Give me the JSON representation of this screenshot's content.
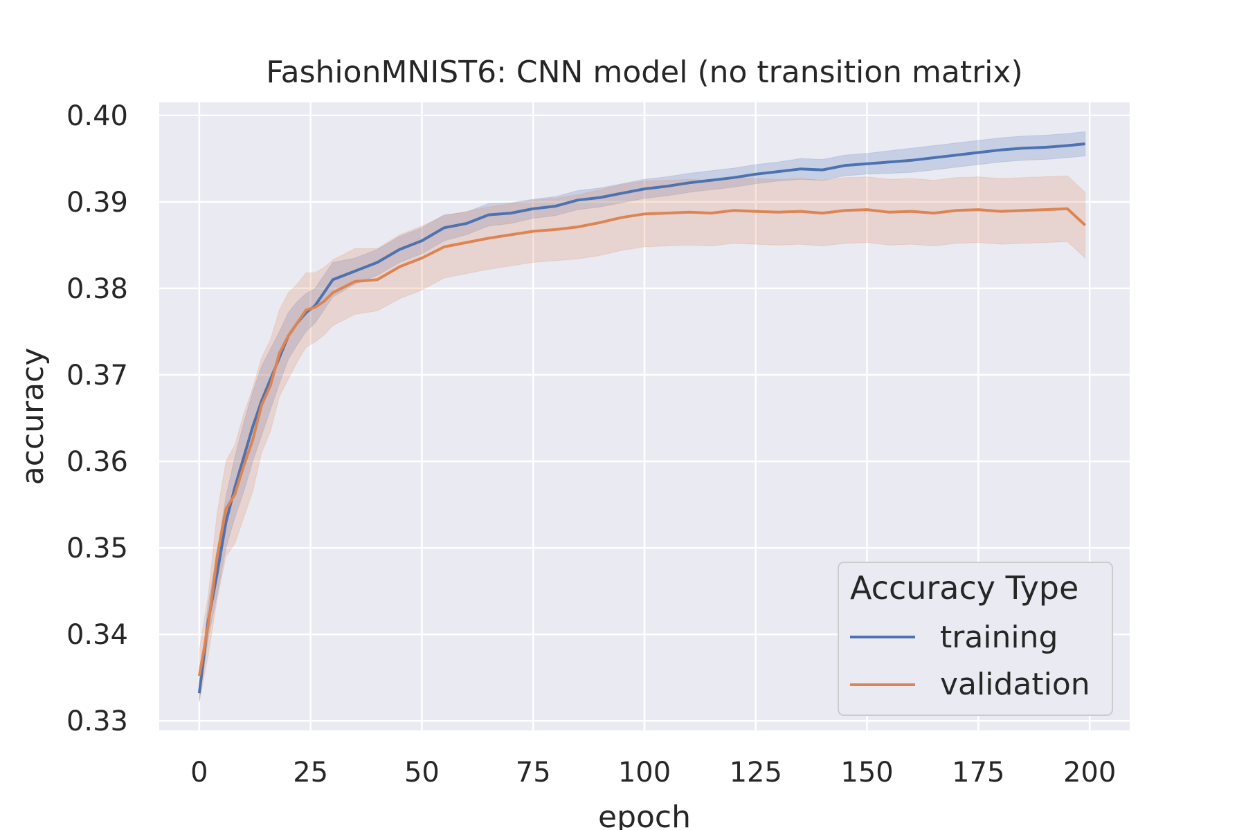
{
  "chart_data": {
    "type": "line",
    "title": "FashionMNIST6: CNN model (no transition matrix)",
    "xlabel": "epoch",
    "ylabel": "accuracy",
    "xlim": [
      -9,
      209
    ],
    "ylim": [
      0.3289,
      0.4015
    ],
    "xticks": [
      0,
      25,
      50,
      75,
      100,
      125,
      150,
      175,
      200
    ],
    "yticks": [
      0.33,
      0.34,
      0.35,
      0.36,
      0.37,
      0.38,
      0.39,
      0.4
    ],
    "xtick_labels": [
      "0",
      "25",
      "50",
      "75",
      "100",
      "125",
      "150",
      "175",
      "200"
    ],
    "ytick_labels": [
      "0.33",
      "0.34",
      "0.35",
      "0.36",
      "0.37",
      "0.38",
      "0.39",
      "0.40"
    ],
    "grid": true,
    "background": "#eaeaf2",
    "legend": {
      "title": "Accuracy Type",
      "position": "lower-right"
    },
    "series": [
      {
        "name": "training",
        "color": "#4c72b0",
        "x": [
          0,
          2,
          4,
          6,
          8,
          10,
          12,
          14,
          16,
          18,
          20,
          22,
          24,
          26,
          28,
          30,
          35,
          40,
          45,
          50,
          55,
          60,
          65,
          70,
          75,
          80,
          85,
          90,
          95,
          100,
          105,
          110,
          115,
          120,
          125,
          130,
          135,
          140,
          145,
          150,
          155,
          160,
          165,
          170,
          175,
          180,
          185,
          190,
          195,
          199
        ],
        "values": [
          0.3332,
          0.3415,
          0.347,
          0.353,
          0.357,
          0.3605,
          0.364,
          0.367,
          0.3695,
          0.372,
          0.3745,
          0.376,
          0.3772,
          0.378,
          0.3795,
          0.381,
          0.382,
          0.383,
          0.3845,
          0.3855,
          0.387,
          0.3875,
          0.3885,
          0.3887,
          0.3892,
          0.3895,
          0.3902,
          0.3905,
          0.391,
          0.3915,
          0.3918,
          0.3922,
          0.3925,
          0.3928,
          0.3932,
          0.3935,
          0.3938,
          0.3937,
          0.3942,
          0.3944,
          0.3946,
          0.3948,
          0.3951,
          0.3954,
          0.3957,
          0.396,
          0.3962,
          0.3963,
          0.3965,
          0.3967
        ],
        "lower": [
          0.3322,
          0.3395,
          0.3445,
          0.35,
          0.3535,
          0.3565,
          0.36,
          0.363,
          0.366,
          0.369,
          0.3718,
          0.3735,
          0.375,
          0.376,
          0.3775,
          0.379,
          0.3805,
          0.3815,
          0.383,
          0.384,
          0.3855,
          0.3862,
          0.3872,
          0.3875,
          0.3881,
          0.3884,
          0.3891,
          0.3894,
          0.3899,
          0.3904,
          0.3907,
          0.3911,
          0.3914,
          0.3917,
          0.3921,
          0.3924,
          0.3926,
          0.3925,
          0.393,
          0.3932,
          0.3933,
          0.3934,
          0.3937,
          0.394,
          0.3943,
          0.3946,
          0.3948,
          0.3949,
          0.3951,
          0.3953
        ],
        "upper": [
          0.3342,
          0.3435,
          0.3495,
          0.356,
          0.3605,
          0.3645,
          0.368,
          0.371,
          0.373,
          0.375,
          0.3772,
          0.3785,
          0.3794,
          0.38,
          0.3815,
          0.383,
          0.3835,
          0.3845,
          0.386,
          0.387,
          0.3885,
          0.3888,
          0.3898,
          0.3899,
          0.3903,
          0.3906,
          0.3913,
          0.3916,
          0.3921,
          0.3926,
          0.3929,
          0.3933,
          0.3936,
          0.3939,
          0.3943,
          0.3946,
          0.395,
          0.3949,
          0.3954,
          0.3956,
          0.3959,
          0.3962,
          0.3965,
          0.3968,
          0.3971,
          0.3974,
          0.3976,
          0.3977,
          0.3979,
          0.3981
        ]
      },
      {
        "name": "validation",
        "color": "#dd8452",
        "x": [
          0,
          2,
          4,
          6,
          8,
          10,
          12,
          14,
          16,
          18,
          20,
          22,
          24,
          26,
          28,
          30,
          35,
          40,
          45,
          50,
          55,
          60,
          65,
          70,
          75,
          80,
          85,
          90,
          95,
          100,
          105,
          110,
          115,
          120,
          125,
          130,
          135,
          140,
          145,
          150,
          155,
          160,
          165,
          170,
          175,
          180,
          185,
          190,
          195,
          199
        ],
        "values": [
          0.3352,
          0.341,
          0.349,
          0.3545,
          0.3562,
          0.3595,
          0.3625,
          0.3665,
          0.3688,
          0.3725,
          0.3745,
          0.376,
          0.3775,
          0.3778,
          0.3785,
          0.3795,
          0.3808,
          0.381,
          0.3825,
          0.3835,
          0.3848,
          0.3853,
          0.3858,
          0.3862,
          0.3866,
          0.3868,
          0.3871,
          0.3876,
          0.3882,
          0.3886,
          0.3887,
          0.3888,
          0.3887,
          0.389,
          0.3889,
          0.3888,
          0.3889,
          0.3887,
          0.389,
          0.3891,
          0.3888,
          0.3889,
          0.3887,
          0.389,
          0.3891,
          0.3889,
          0.389,
          0.3891,
          0.3892,
          0.3873
        ],
        "lower": [
          0.3322,
          0.3375,
          0.344,
          0.349,
          0.3505,
          0.3535,
          0.3565,
          0.361,
          0.3635,
          0.3675,
          0.3695,
          0.3715,
          0.3732,
          0.3738,
          0.3746,
          0.3757,
          0.377,
          0.3774,
          0.3788,
          0.3798,
          0.3812,
          0.3817,
          0.3822,
          0.3826,
          0.383,
          0.3832,
          0.3834,
          0.3838,
          0.3844,
          0.3848,
          0.3849,
          0.385,
          0.3849,
          0.3852,
          0.3851,
          0.385,
          0.3851,
          0.3849,
          0.3852,
          0.3853,
          0.385,
          0.3851,
          0.3849,
          0.3852,
          0.3853,
          0.3851,
          0.3852,
          0.3853,
          0.3854,
          0.3835
        ],
        "upper": [
          0.3382,
          0.3445,
          0.354,
          0.36,
          0.3619,
          0.3655,
          0.3685,
          0.372,
          0.3741,
          0.3775,
          0.3795,
          0.3805,
          0.3818,
          0.3818,
          0.3824,
          0.3833,
          0.3846,
          0.3846,
          0.3862,
          0.3872,
          0.3884,
          0.3889,
          0.3894,
          0.3898,
          0.3902,
          0.3904,
          0.3908,
          0.3914,
          0.392,
          0.3924,
          0.3925,
          0.3926,
          0.3925,
          0.3928,
          0.3927,
          0.3926,
          0.3927,
          0.3925,
          0.3928,
          0.3929,
          0.3926,
          0.3927,
          0.3925,
          0.3928,
          0.3929,
          0.3927,
          0.3928,
          0.3929,
          0.393,
          0.3911
        ]
      }
    ]
  }
}
